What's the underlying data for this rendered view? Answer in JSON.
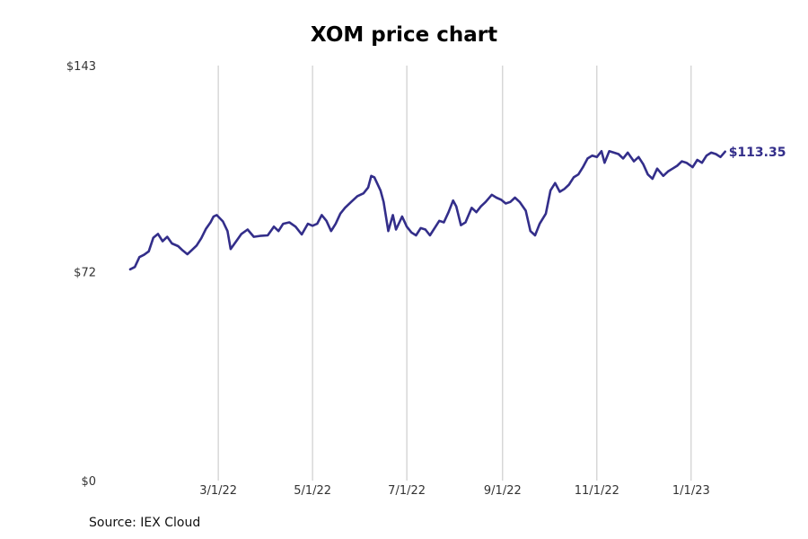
{
  "chart_data": {
    "type": "line",
    "title": "XOM price chart",
    "source": "Source: IEX Cloud",
    "xlabel": "",
    "ylabel": "",
    "ylim": [
      0,
      143
    ],
    "y_ticks": [
      {
        "value": 0,
        "label": "$0"
      },
      {
        "value": 72,
        "label": "$72"
      },
      {
        "value": 143,
        "label": "$143"
      }
    ],
    "x_ticks": [
      {
        "date": "2022-03-01",
        "label": "3/1/22"
      },
      {
        "date": "2022-05-01",
        "label": "5/1/22"
      },
      {
        "date": "2022-07-01",
        "label": "7/1/22"
      },
      {
        "date": "2022-09-01",
        "label": "9/1/22"
      },
      {
        "date": "2022-11-01",
        "label": "11/1/22"
      },
      {
        "date": "2023-01-01",
        "label": "1/1/23"
      }
    ],
    "xlim": [
      "2022-01-03",
      "2023-02-16"
    ],
    "grid": "vertical",
    "line_color": "#332e8a",
    "end_label": "$113.35",
    "series": [
      {
        "name": "",
        "points": [
          [
            "2022-01-03",
            72.8
          ],
          [
            "2022-01-06",
            73.6
          ],
          [
            "2022-01-09",
            77.0
          ],
          [
            "2022-01-12",
            77.8
          ],
          [
            "2022-01-15",
            79.0
          ],
          [
            "2022-01-18",
            83.7
          ],
          [
            "2022-01-21",
            85.0
          ],
          [
            "2022-01-24",
            82.5
          ],
          [
            "2022-01-27",
            84.0
          ],
          [
            "2022-01-30",
            81.7
          ],
          [
            "2022-02-03",
            80.8
          ],
          [
            "2022-02-06",
            79.3
          ],
          [
            "2022-02-09",
            78.0
          ],
          [
            "2022-02-12",
            79.5
          ],
          [
            "2022-02-15",
            81.0
          ],
          [
            "2022-02-18",
            83.5
          ],
          [
            "2022-02-21",
            86.7
          ],
          [
            "2022-02-24",
            89.0
          ],
          [
            "2022-02-26",
            91.0
          ],
          [
            "2022-02-28",
            91.5
          ],
          [
            "2022-03-04",
            89.3
          ],
          [
            "2022-03-07",
            86.0
          ],
          [
            "2022-03-09",
            79.8
          ],
          [
            "2022-03-12",
            82.0
          ],
          [
            "2022-03-16",
            85.0
          ],
          [
            "2022-03-20",
            86.5
          ],
          [
            "2022-03-24",
            84.0
          ],
          [
            "2022-03-28",
            84.3
          ],
          [
            "2022-04-02",
            84.5
          ],
          [
            "2022-04-06",
            87.5
          ],
          [
            "2022-04-09",
            86.0
          ],
          [
            "2022-04-12",
            88.5
          ],
          [
            "2022-04-16",
            89.0
          ],
          [
            "2022-04-20",
            87.5
          ],
          [
            "2022-04-24",
            84.8
          ],
          [
            "2022-04-28",
            88.5
          ],
          [
            "2022-05-01",
            87.8
          ],
          [
            "2022-05-04",
            88.5
          ],
          [
            "2022-05-07",
            91.5
          ],
          [
            "2022-05-10",
            89.5
          ],
          [
            "2022-05-13",
            86.0
          ],
          [
            "2022-05-16",
            88.5
          ],
          [
            "2022-05-19",
            92.0
          ],
          [
            "2022-05-22",
            94.0
          ],
          [
            "2022-05-26",
            96.0
          ],
          [
            "2022-05-30",
            98.0
          ],
          [
            "2022-06-03",
            99.0
          ],
          [
            "2022-06-06",
            101.0
          ],
          [
            "2022-06-08",
            105.0
          ],
          [
            "2022-06-10",
            104.5
          ],
          [
            "2022-06-14",
            100.0
          ],
          [
            "2022-06-16",
            96.0
          ],
          [
            "2022-06-19",
            86.0
          ],
          [
            "2022-06-22",
            91.5
          ],
          [
            "2022-06-24",
            86.5
          ],
          [
            "2022-06-28",
            91.0
          ],
          [
            "2022-07-01",
            87.5
          ],
          [
            "2022-07-04",
            85.5
          ],
          [
            "2022-07-07",
            84.5
          ],
          [
            "2022-07-10",
            87.0
          ],
          [
            "2022-07-13",
            86.5
          ],
          [
            "2022-07-16",
            84.5
          ],
          [
            "2022-07-19",
            87.0
          ],
          [
            "2022-07-22",
            89.5
          ],
          [
            "2022-07-25",
            89.0
          ],
          [
            "2022-07-28",
            92.5
          ],
          [
            "2022-07-31",
            96.5
          ],
          [
            "2022-08-02",
            94.5
          ],
          [
            "2022-08-05",
            88.0
          ],
          [
            "2022-08-08",
            89.0
          ],
          [
            "2022-08-12",
            94.0
          ],
          [
            "2022-08-15",
            92.5
          ],
          [
            "2022-08-18",
            94.5
          ],
          [
            "2022-08-21",
            96.0
          ],
          [
            "2022-08-25",
            98.5
          ],
          [
            "2022-08-28",
            97.5
          ],
          [
            "2022-08-31",
            96.8
          ],
          [
            "2022-09-03",
            95.5
          ],
          [
            "2022-09-06",
            96.0
          ],
          [
            "2022-09-09",
            97.5
          ],
          [
            "2022-09-12",
            96.0
          ],
          [
            "2022-09-16",
            93.0
          ],
          [
            "2022-09-19",
            86.0
          ],
          [
            "2022-09-22",
            84.5
          ],
          [
            "2022-09-25",
            88.5
          ],
          [
            "2022-09-29",
            92.0
          ],
          [
            "2022-10-02",
            100.0
          ],
          [
            "2022-10-05",
            102.5
          ],
          [
            "2022-10-08",
            99.5
          ],
          [
            "2022-10-11",
            100.5
          ],
          [
            "2022-10-14",
            102.0
          ],
          [
            "2022-10-17",
            104.5
          ],
          [
            "2022-10-20",
            105.5
          ],
          [
            "2022-10-23",
            108.0
          ],
          [
            "2022-10-26",
            111.0
          ],
          [
            "2022-10-29",
            112.0
          ],
          [
            "2022-11-01",
            111.5
          ],
          [
            "2022-11-04",
            113.5
          ],
          [
            "2022-11-06",
            109.5
          ],
          [
            "2022-11-09",
            113.5
          ],
          [
            "2022-11-12",
            113.0
          ],
          [
            "2022-11-15",
            112.5
          ],
          [
            "2022-11-18",
            111.0
          ],
          [
            "2022-11-21",
            113.0
          ],
          [
            "2022-11-25",
            110.0
          ],
          [
            "2022-11-28",
            111.5
          ],
          [
            "2022-12-01",
            109.0
          ],
          [
            "2022-12-04",
            105.5
          ],
          [
            "2022-12-07",
            104.0
          ],
          [
            "2022-12-10",
            107.5
          ],
          [
            "2022-12-14",
            105.0
          ],
          [
            "2022-12-17",
            106.5
          ],
          [
            "2022-12-20",
            107.5
          ],
          [
            "2022-12-23",
            108.5
          ],
          [
            "2022-12-26",
            110.0
          ],
          [
            "2022-12-29",
            109.5
          ],
          [
            "2023-01-02",
            108.0
          ],
          [
            "2023-01-05",
            110.5
          ],
          [
            "2023-01-08",
            109.5
          ],
          [
            "2023-01-11",
            112.0
          ],
          [
            "2023-01-14",
            113.0
          ],
          [
            "2023-01-17",
            112.5
          ],
          [
            "2023-01-20",
            111.5
          ],
          [
            "2023-01-23",
            113.35
          ]
        ]
      }
    ]
  }
}
